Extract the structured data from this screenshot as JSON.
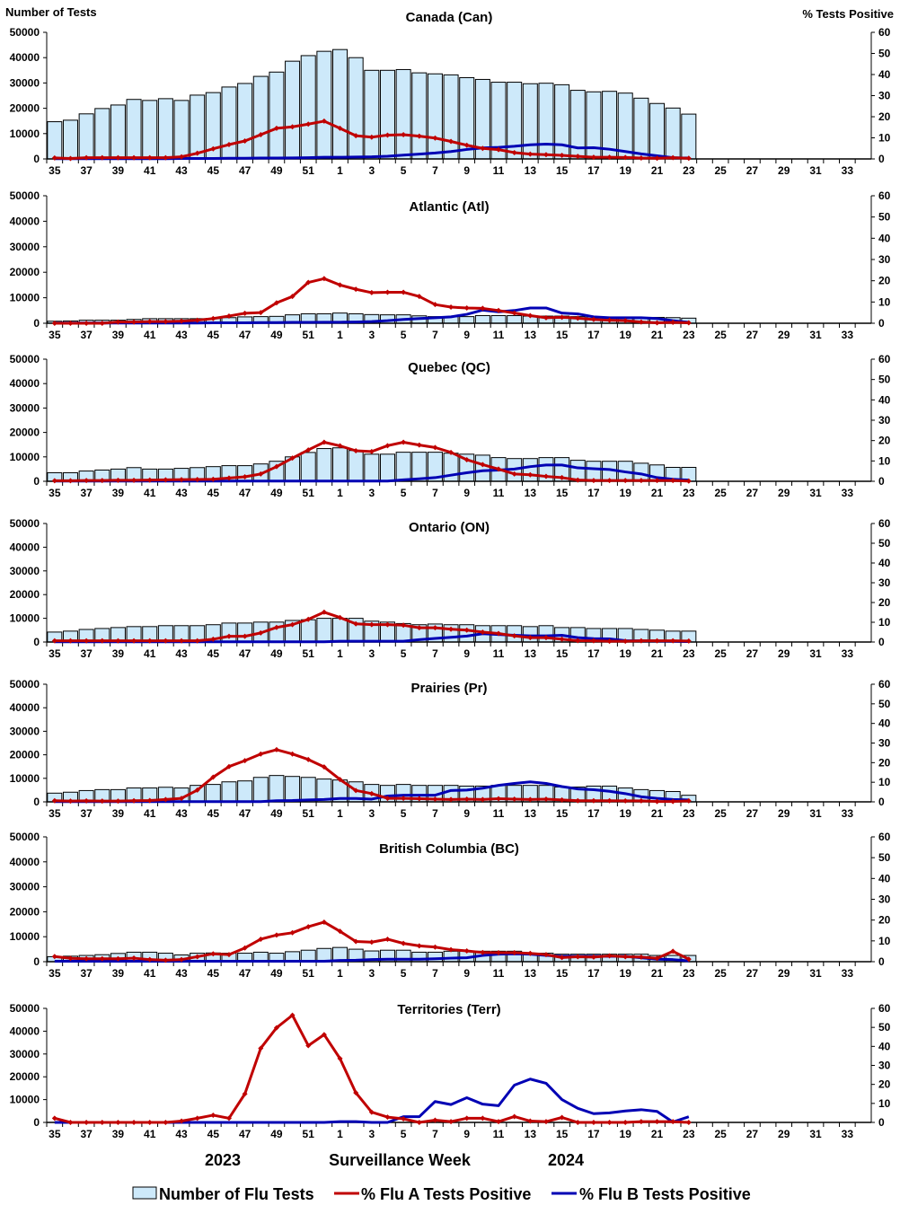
{
  "chart_data": [
    {
      "type": "bar+line",
      "title": "Canada (Can)",
      "tests": [
        14700,
        15300,
        17800,
        19900,
        21300,
        23500,
        23100,
        23800,
        23100,
        25200,
        26200,
        28400,
        29800,
        32600,
        34300,
        38600,
        40800,
        42500,
        43200,
        40000,
        35000,
        35000,
        35300,
        34000,
        33600,
        33200,
        32100,
        31400,
        30300,
        30300,
        29700,
        29900,
        29300,
        27100,
        26500,
        26700,
        26000,
        24000,
        21900,
        20100,
        17700
      ],
      "flu_a": [
        0.5,
        0.2,
        0.6,
        0.6,
        0.6,
        0.6,
        0.6,
        0.6,
        1,
        2.7,
        4.8,
        6.8,
        8.5,
        11.5,
        14.5,
        15.2,
        16.5,
        17.9,
        14.5,
        11,
        10.3,
        11.3,
        11.5,
        10.8,
        9.9,
        8.3,
        6.5,
        5,
        4.4,
        3,
        2.3,
        2,
        1.7,
        1.2,
        0.8,
        0.8,
        0.7,
        0.4,
        0.3,
        0.6,
        0.3
      ],
      "flu_b": [
        0.1,
        0.1,
        0.1,
        0.1,
        0.1,
        0.1,
        0.1,
        0.1,
        0.2,
        0.2,
        0.2,
        0.3,
        0.3,
        0.4,
        0.4,
        0.5,
        0.6,
        0.8,
        0.8,
        0.9,
        1,
        1.3,
        1.8,
        2.3,
        2.8,
        3.5,
        4.5,
        5.2,
        5.5,
        6,
        6.7,
        7,
        6.7,
        5.2,
        5.3,
        4.6,
        3.5,
        2.4,
        1.5,
        0.6,
        0.4
      ]
    },
    {
      "type": "bar+line",
      "title": "Atlantic (Atl)",
      "tests": [
        800,
        900,
        1200,
        1200,
        1200,
        1500,
        1800,
        1800,
        1800,
        1800,
        1900,
        2200,
        2500,
        2600,
        2700,
        3300,
        3700,
        3700,
        4000,
        3700,
        3400,
        3300,
        3300,
        2900,
        2600,
        2600,
        2600,
        3000,
        3000,
        3000,
        2800,
        2800,
        2800,
        2600,
        2500,
        2300,
        2300,
        2300,
        2300,
        2200,
        2000
      ],
      "flu_a": [
        0,
        0,
        0,
        0,
        0.6,
        0.6,
        0.8,
        0.8,
        1,
        1.4,
        2.2,
        3.4,
        4.7,
        5,
        9.6,
        12.6,
        19.2,
        21,
        18,
        16,
        14.4,
        14.6,
        14.6,
        12.6,
        8.8,
        7.6,
        7.2,
        7,
        6,
        4.8,
        3.6,
        2.6,
        2.8,
        2.4,
        1.8,
        1.4,
        1.2,
        0.6,
        0.2,
        0.4,
        0.2
      ],
      "flu_b": [
        0.1,
        0.1,
        0.1,
        0.1,
        0.1,
        0.1,
        0.1,
        0.1,
        0.1,
        0.1,
        0.2,
        0.2,
        0.2,
        0.3,
        0.3,
        0.4,
        0.4,
        0.5,
        0.5,
        0.6,
        0.8,
        1.2,
        1.8,
        2.2,
        2.6,
        3,
        4.2,
        6.2,
        5.4,
        6,
        7.2,
        7.2,
        4.8,
        4.4,
        3,
        2.6,
        2.6,
        2.6,
        2.2,
        1.2,
        0.4
      ]
    },
    {
      "type": "bar+line",
      "title": "Quebec (QC)",
      "tests": [
        3500,
        3500,
        4200,
        4600,
        5000,
        5600,
        5000,
        5000,
        5300,
        5600,
        6000,
        6400,
        6400,
        7100,
        8200,
        10000,
        11800,
        13400,
        13700,
        12600,
        11100,
        11100,
        11900,
        11900,
        11900,
        11500,
        11100,
        10700,
        9700,
        9300,
        9300,
        9700,
        9700,
        8600,
        8200,
        8200,
        8200,
        7400,
        6700,
        5700,
        5700
      ],
      "flu_a": [
        0.3,
        0.3,
        0.4,
        0.4,
        0.5,
        0.5,
        0.6,
        0.7,
        0.8,
        0.9,
        1,
        1.6,
        2.2,
        3.6,
        7.2,
        11.4,
        15.4,
        19.2,
        17.4,
        15,
        14.6,
        17.5,
        19.2,
        17.8,
        16.6,
        14.2,
        10.6,
        8.2,
        6,
        3.6,
        3.2,
        2.4,
        1.8,
        0.6,
        0.4,
        0.4,
        0.4,
        0.4,
        0.4,
        0.4,
        0.1
      ],
      "flu_b": [
        0.1,
        0.1,
        0.1,
        0.1,
        0.1,
        0.1,
        0.1,
        0.1,
        0.1,
        0.1,
        0.1,
        0.1,
        0.1,
        0.1,
        0.1,
        0.1,
        0.1,
        0.1,
        0.1,
        0.1,
        0.1,
        0.1,
        0.7,
        1.2,
        1.8,
        3,
        4.2,
        5.2,
        5.5,
        6,
        7.2,
        8,
        8,
        6.6,
        6.2,
        5.8,
        4.6,
        3.6,
        1.8,
        1,
        0.6
      ]
    },
    {
      "type": "bar+line",
      "title": "Ontario (ON)",
      "tests": [
        4200,
        4600,
        5300,
        5700,
        6100,
        6500,
        6500,
        6900,
        6900,
        6900,
        7300,
        8000,
        8000,
        8400,
        8400,
        9100,
        9400,
        10000,
        10000,
        10000,
        8800,
        8400,
        7800,
        7300,
        7600,
        7300,
        7300,
        6900,
        6900,
        6900,
        6500,
        6900,
        6100,
        6100,
        5700,
        5700,
        5700,
        5300,
        5000,
        4600,
        4600
      ],
      "flu_a": [
        0.6,
        0.6,
        0.6,
        0.6,
        0.6,
        0.6,
        0.6,
        0.6,
        0.6,
        0.6,
        1.4,
        2.9,
        2.9,
        4.6,
        7.4,
        8.8,
        11.5,
        15.1,
        12.4,
        9.2,
        8.8,
        8.8,
        8.5,
        7.2,
        7.2,
        6.5,
        6,
        5,
        4.3,
        3.1,
        2.2,
        2.2,
        1.4,
        0.7,
        0.6,
        0.4,
        0.4,
        0.6,
        0.6,
        0.6,
        0.5
      ],
      "flu_b": [
        0.1,
        0.1,
        0.1,
        0.1,
        0.1,
        0.1,
        0.1,
        0.1,
        0.1,
        0.1,
        0.1,
        0.1,
        0.1,
        0.1,
        0.1,
        0.1,
        0.1,
        0.1,
        0.4,
        0.4,
        0.4,
        0.4,
        0.4,
        1.2,
        1.8,
        2.4,
        3,
        4.2,
        3.8,
        3.4,
        3.1,
        3.1,
        3.4,
        2.2,
        1.7,
        1.6,
        0.7,
        0.6,
        0.5,
        0.4,
        0.2
      ]
    },
    {
      "type": "bar+line",
      "title": "Prairies (Pr)",
      "tests": [
        3700,
        4100,
        4800,
        5200,
        5200,
        5900,
        5900,
        6200,
        5900,
        7000,
        7400,
        8500,
        8900,
        10400,
        11200,
        10800,
        10400,
        9700,
        9300,
        8500,
        7400,
        7000,
        7400,
        7000,
        7000,
        7000,
        6700,
        6700,
        7000,
        7000,
        7000,
        7000,
        6300,
        6300,
        6700,
        6700,
        5900,
        5200,
        4800,
        4400,
        2800
      ],
      "flu_a": [
        0.6,
        0.4,
        0.5,
        0.4,
        0.4,
        0.6,
        0.7,
        1.2,
        1.8,
        6,
        12.6,
        18,
        21,
        24.4,
        26.6,
        24.4,
        21.6,
        17.8,
        11.4,
        5.8,
        4.2,
        1.8,
        1.8,
        1.6,
        1.4,
        1.2,
        1.4,
        1.2,
        1.6,
        1.4,
        1.2,
        1.4,
        1,
        0.6,
        0.6,
        0.6,
        0.5,
        0.5,
        0.2,
        0.2,
        0.5
      ],
      "flu_b": [
        0.1,
        0.1,
        0.1,
        0.1,
        0.1,
        0.1,
        0.1,
        0.1,
        0.1,
        0.1,
        0.1,
        0.1,
        0.1,
        0.1,
        0.6,
        0.7,
        1,
        1.2,
        1.7,
        1.7,
        1.4,
        3,
        3.4,
        3.4,
        3.4,
        5.8,
        6,
        7,
        8.4,
        9.4,
        10.2,
        9.4,
        7.8,
        6.6,
        6.2,
        5.4,
        4.2,
        2.6,
        1.8,
        1.2,
        1
      ]
    },
    {
      "type": "bar+line",
      "title": "British Columbia (BC)",
      "tests": [
        2000,
        2200,
        2500,
        2800,
        3300,
        3800,
        3800,
        3400,
        2700,
        3400,
        3500,
        3400,
        3400,
        3800,
        3400,
        4000,
        4600,
        5300,
        5700,
        5000,
        4300,
        4600,
        4600,
        3800,
        3800,
        4200,
        4200,
        4200,
        4200,
        4200,
        3400,
        3400,
        3000,
        3000,
        3000,
        3000,
        3000,
        3000,
        2500,
        2500,
        2500
      ],
      "flu_a": [
        2.5,
        1.6,
        1.4,
        1.4,
        1.4,
        1.7,
        1,
        0.7,
        1,
        2.4,
        3.8,
        3.4,
        6.6,
        10.8,
        12.8,
        13.9,
        16.8,
        19,
        14.6,
        9.7,
        9.4,
        10.8,
        8.8,
        7.6,
        7,
        5.8,
        5.2,
        4.4,
        4.3,
        4.3,
        4,
        3.4,
        2,
        2.4,
        2.2,
        2.8,
        2.4,
        2.2,
        1.6,
        5,
        1.2
      ],
      "flu_b": [
        0.2,
        0.2,
        0.2,
        0.2,
        0.2,
        0.2,
        0.2,
        0.2,
        0.2,
        0.2,
        0.2,
        0.2,
        0.2,
        0.2,
        0.2,
        0.2,
        0.2,
        0.2,
        0.6,
        0.7,
        1,
        1.2,
        1.2,
        1.2,
        1.4,
        1.7,
        1.9,
        3,
        3.6,
        3.8,
        3.6,
        3,
        2.6,
        2.6,
        2.6,
        2.6,
        2.6,
        1.9,
        1.2,
        1,
        0.4
      ]
    },
    {
      "type": "bar+line",
      "title": "Territories (Terr)",
      "tests": [
        80,
        80,
        80,
        80,
        80,
        80,
        80,
        80,
        80,
        80,
        80,
        80,
        80,
        80,
        80,
        80,
        80,
        80,
        80,
        80,
        80,
        80,
        80,
        80,
        80,
        80,
        80,
        80,
        80,
        80,
        80,
        80,
        80,
        80,
        80,
        80,
        80,
        80,
        80,
        80,
        80
      ],
      "flu_a": [
        2.2,
        0,
        0,
        0,
        0,
        0,
        0,
        0,
        0.7,
        2.2,
        3.8,
        2.2,
        15,
        39,
        49.8,
        56.4,
        40.4,
        46.2,
        33.6,
        15.6,
        5.4,
        2.8,
        1.9,
        0,
        1.2,
        0.4,
        2.2,
        2.2,
        0.4,
        3.1,
        0.7,
        0.4,
        2.6,
        0,
        0,
        0,
        0,
        0.4,
        0.4,
        0.4,
        0
      ],
      "flu_b": [
        0,
        0,
        0,
        0,
        0,
        0,
        0,
        0,
        0,
        0,
        0,
        0,
        0,
        0,
        0,
        0,
        0,
        0,
        0.4,
        0.4,
        0,
        0,
        3,
        3,
        11,
        9.4,
        13,
        9.6,
        8.8,
        19.6,
        22.8,
        20.6,
        12,
        7.4,
        4.6,
        5,
        6,
        6.7,
        5.8,
        0.2,
        3
      ]
    }
  ],
  "weeks": [
    35,
    36,
    37,
    38,
    39,
    40,
    41,
    42,
    43,
    44,
    45,
    46,
    47,
    48,
    49,
    50,
    51,
    52,
    1,
    2,
    3,
    4,
    5,
    6,
    7,
    8,
    9,
    10,
    11,
    12,
    13,
    14,
    15,
    16,
    17,
    18,
    19,
    20,
    21,
    22,
    23,
    24,
    25,
    26,
    27,
    28,
    29,
    30,
    31,
    32,
    33,
    34
  ],
  "y_left": {
    "label": "Number of Tests",
    "range": [
      0,
      50000
    ],
    "ticks": [
      "0",
      "10000",
      "20000",
      "30000",
      "40000",
      "50000"
    ]
  },
  "y_right": {
    "label": "% Tests Positive",
    "range": [
      0,
      60
    ],
    "ticks": [
      "0",
      "10",
      "20",
      "30",
      "40",
      "50",
      "60"
    ]
  },
  "xlabel": "Surveillance Week",
  "year_labels": [
    "2023",
    "2024"
  ],
  "legend": {
    "placement": "bottom",
    "items": [
      "Number of Flu Tests",
      "% Flu A Tests Positive",
      "% Flu B Tests Positive"
    ]
  },
  "colors": {
    "bars": "#cde9fa",
    "flu_a": "#c00000",
    "flu_b": "#0000b4"
  },
  "grid": false
}
